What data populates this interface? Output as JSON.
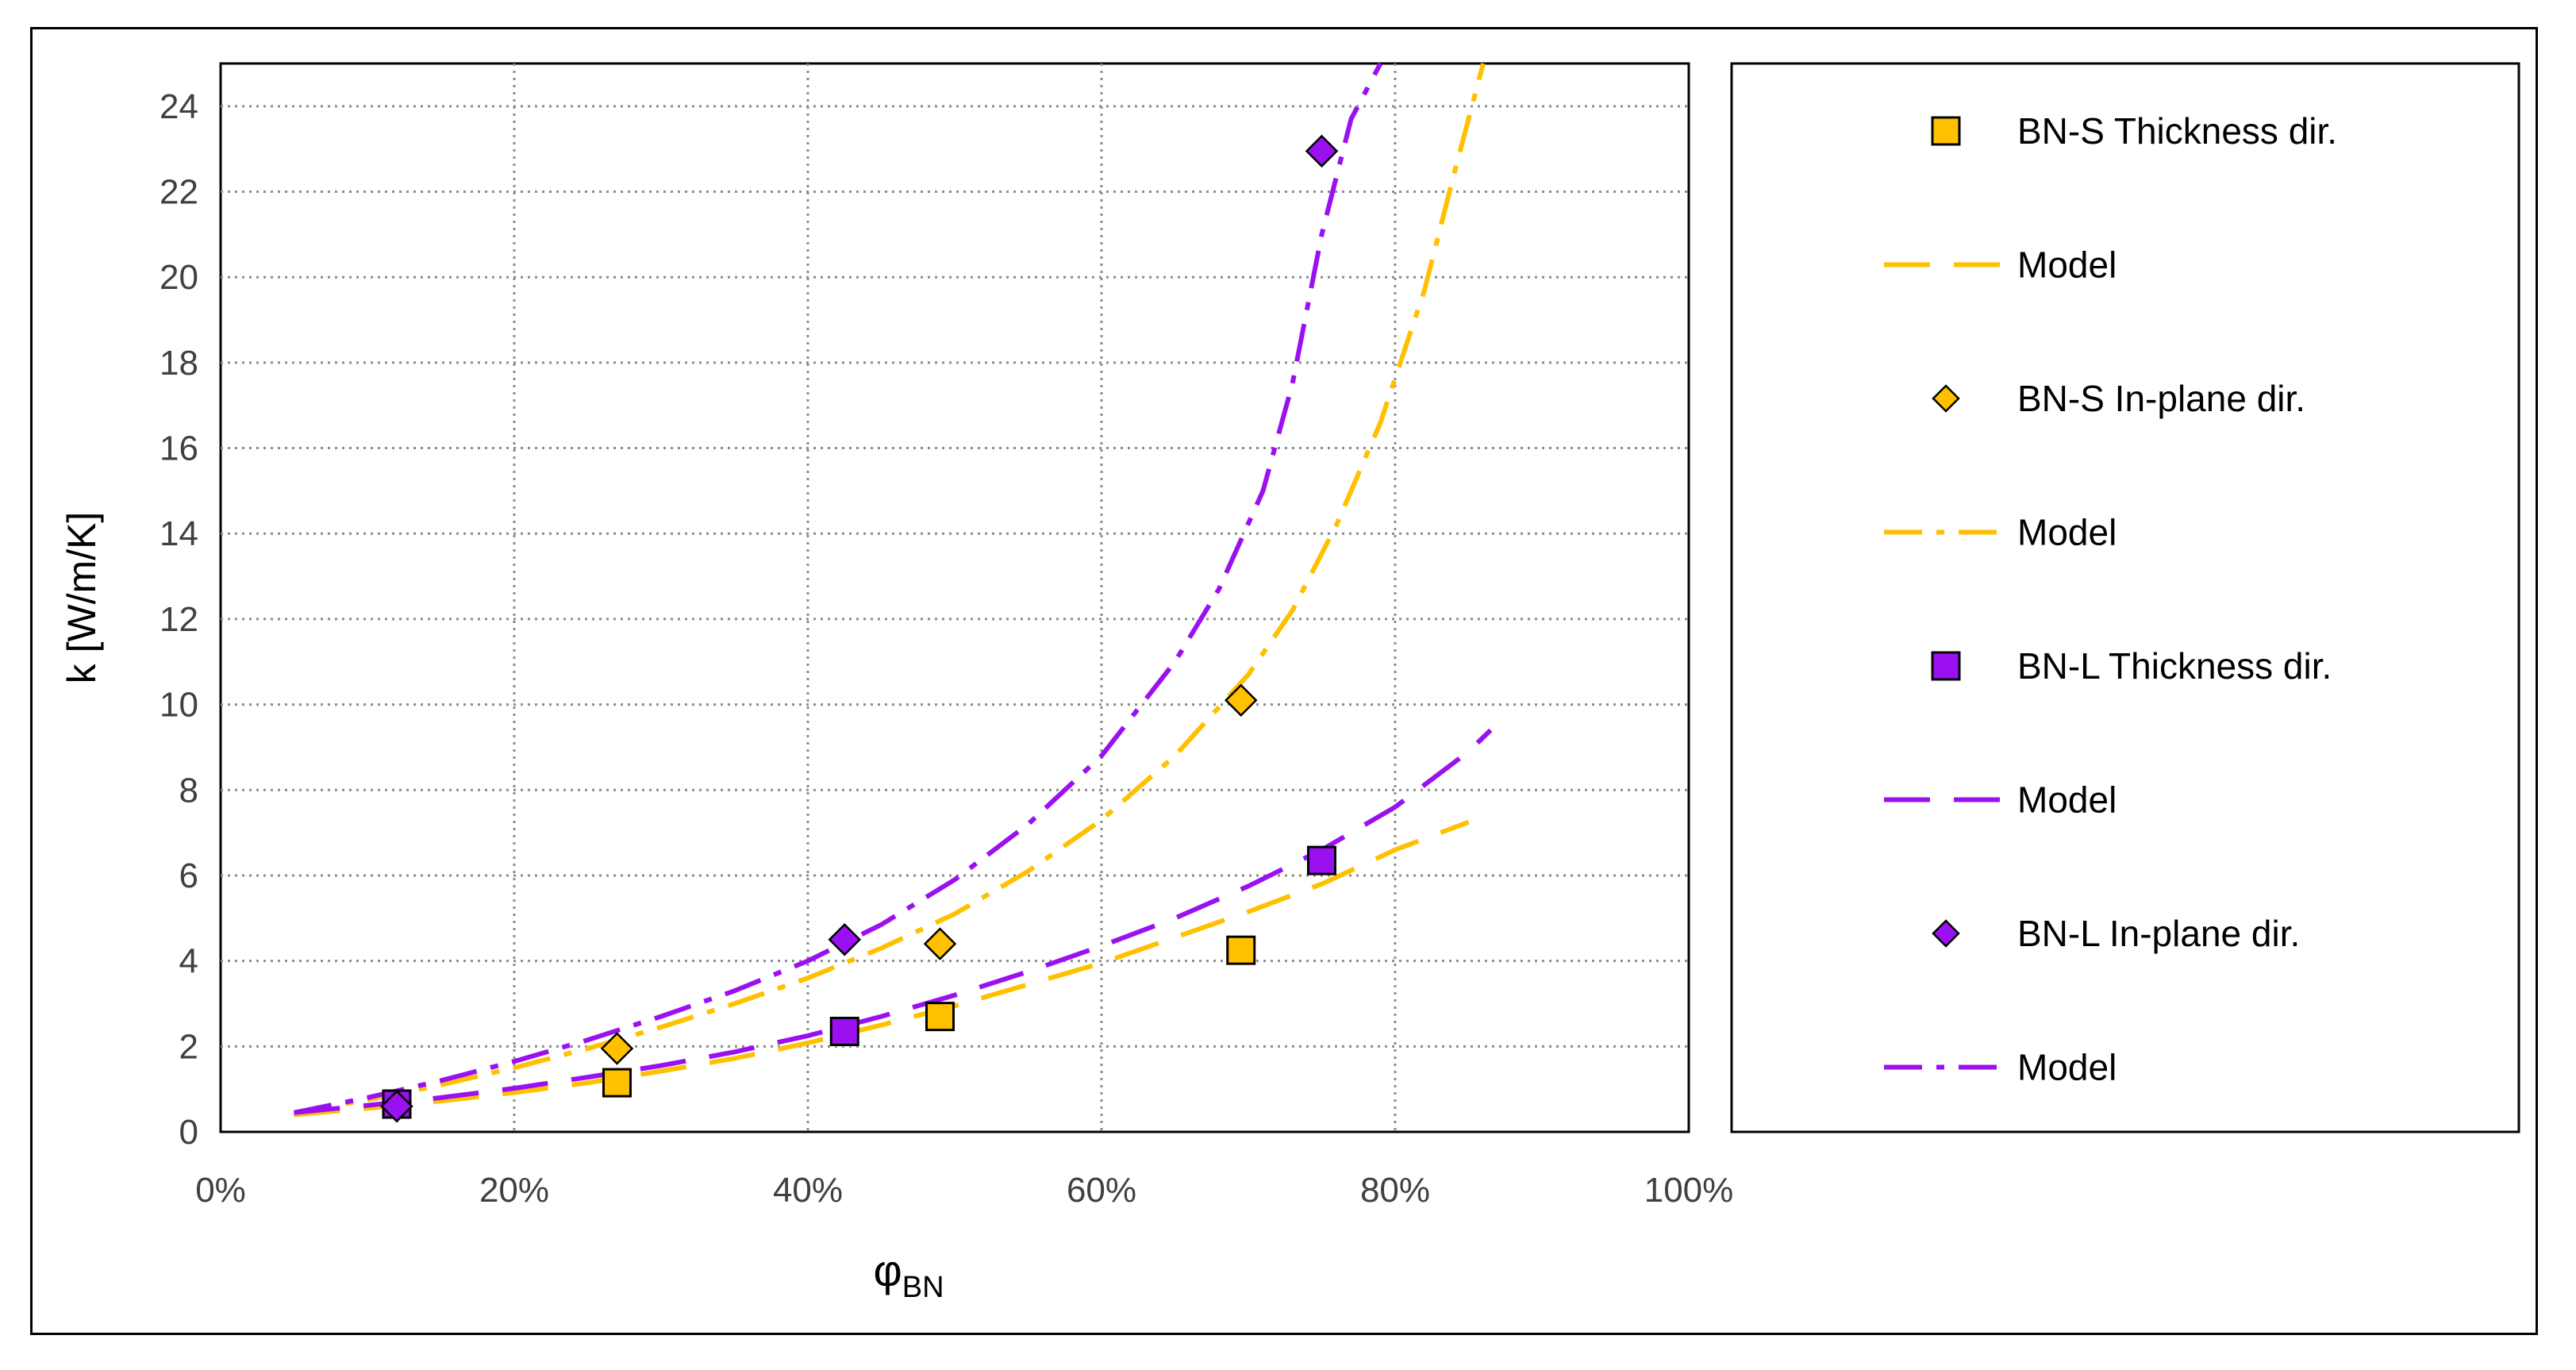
{
  "chart_data": {
    "type": "scatter",
    "title": "",
    "xlabel": "φ",
    "xlabel_subscript": "BN",
    "ylabel": "k [W/m/K]",
    "xlim": [
      0,
      1
    ],
    "ylim": [
      0,
      25
    ],
    "x_ticks": [
      0,
      0.2,
      0.4,
      0.6,
      0.8,
      1.0
    ],
    "x_tick_labels": [
      "0%",
      "20%",
      "40%",
      "60%",
      "80%",
      "100%"
    ],
    "y_ticks": [
      0,
      2,
      4,
      6,
      8,
      10,
      12,
      14,
      16,
      18,
      20,
      22,
      24
    ],
    "y_tick_labels": [
      "0",
      "2",
      "4",
      "6",
      "8",
      "10",
      "12",
      "14",
      "16",
      "18",
      "20",
      "22",
      "24"
    ],
    "grid": true,
    "legend_position": "right",
    "colors": {
      "orange": "#FFC000",
      "purple": "#9B10F0"
    },
    "series": [
      {
        "name": "BN-S Thickness dir.",
        "kind": "markers",
        "marker": "square",
        "color": "#FFC000",
        "points": [
          [
            0.27,
            1.15
          ],
          [
            0.49,
            2.7
          ],
          [
            0.695,
            4.25
          ]
        ]
      },
      {
        "name": "Model",
        "kind": "line",
        "dash": "long-dash",
        "color": "#FFC000",
        "points": [
          [
            0.05,
            0.4
          ],
          [
            0.1,
            0.55
          ],
          [
            0.15,
            0.72
          ],
          [
            0.2,
            0.92
          ],
          [
            0.25,
            1.15
          ],
          [
            0.3,
            1.42
          ],
          [
            0.35,
            1.72
          ],
          [
            0.4,
            2.08
          ],
          [
            0.45,
            2.5
          ],
          [
            0.5,
            2.95
          ],
          [
            0.55,
            3.45
          ],
          [
            0.6,
            3.95
          ],
          [
            0.65,
            4.55
          ],
          [
            0.7,
            5.15
          ],
          [
            0.75,
            5.8
          ],
          [
            0.8,
            6.6
          ],
          [
            0.85,
            7.25
          ]
        ]
      },
      {
        "name": "BN-S In-plane dir.",
        "kind": "markers",
        "marker": "diamond",
        "color": "#FFC000",
        "points": [
          [
            0.27,
            1.95
          ],
          [
            0.49,
            4.4
          ],
          [
            0.695,
            10.1
          ]
        ]
      },
      {
        "name": "Model",
        "kind": "line",
        "dash": "dash-dot",
        "color": "#FFC000",
        "points": [
          [
            0.05,
            0.45
          ],
          [
            0.1,
            0.75
          ],
          [
            0.15,
            1.1
          ],
          [
            0.2,
            1.5
          ],
          [
            0.25,
            1.95
          ],
          [
            0.3,
            2.45
          ],
          [
            0.35,
            3.0
          ],
          [
            0.4,
            3.6
          ],
          [
            0.45,
            4.3
          ],
          [
            0.5,
            5.1
          ],
          [
            0.55,
            6.1
          ],
          [
            0.6,
            7.3
          ],
          [
            0.65,
            8.8
          ],
          [
            0.7,
            10.7
          ],
          [
            0.73,
            12.2
          ],
          [
            0.76,
            14.2
          ],
          [
            0.79,
            16.6
          ],
          [
            0.82,
            19.7
          ],
          [
            0.84,
            22.4
          ],
          [
            0.86,
            25
          ]
        ]
      },
      {
        "name": "BN-L Thickness dir.",
        "kind": "markers",
        "marker": "square",
        "color": "#9B10F0",
        "points": [
          [
            0.12,
            0.65
          ],
          [
            0.425,
            2.35
          ],
          [
            0.75,
            6.35
          ]
        ]
      },
      {
        "name": "Model",
        "kind": "line",
        "dash": "long-dash",
        "color": "#9B10F0",
        "points": [
          [
            0.05,
            0.45
          ],
          [
            0.1,
            0.62
          ],
          [
            0.15,
            0.8
          ],
          [
            0.2,
            1.02
          ],
          [
            0.25,
            1.28
          ],
          [
            0.3,
            1.55
          ],
          [
            0.35,
            1.87
          ],
          [
            0.4,
            2.25
          ],
          [
            0.45,
            2.7
          ],
          [
            0.5,
            3.2
          ],
          [
            0.55,
            3.75
          ],
          [
            0.6,
            4.35
          ],
          [
            0.65,
            5.0
          ],
          [
            0.7,
            5.75
          ],
          [
            0.75,
            6.6
          ],
          [
            0.8,
            7.6
          ],
          [
            0.85,
            8.9
          ],
          [
            0.865,
            9.4
          ]
        ]
      },
      {
        "name": "BN-L In-plane dir.",
        "kind": "markers",
        "marker": "diamond",
        "color": "#9B10F0",
        "points": [
          [
            0.12,
            0.6
          ],
          [
            0.425,
            4.5
          ],
          [
            0.75,
            22.95
          ]
        ]
      },
      {
        "name": "Model",
        "kind": "line",
        "dash": "dash-dot",
        "color": "#9B10F0",
        "points": [
          [
            0.05,
            0.45
          ],
          [
            0.1,
            0.8
          ],
          [
            0.15,
            1.2
          ],
          [
            0.2,
            1.65
          ],
          [
            0.25,
            2.15
          ],
          [
            0.3,
            2.7
          ],
          [
            0.35,
            3.3
          ],
          [
            0.4,
            4.0
          ],
          [
            0.45,
            4.85
          ],
          [
            0.5,
            5.9
          ],
          [
            0.55,
            7.2
          ],
          [
            0.6,
            8.8
          ],
          [
            0.65,
            11.0
          ],
          [
            0.68,
            12.7
          ],
          [
            0.71,
            15.0
          ],
          [
            0.73,
            17.5
          ],
          [
            0.75,
            21.0
          ],
          [
            0.77,
            23.7
          ],
          [
            0.79,
            25
          ]
        ]
      }
    ]
  }
}
